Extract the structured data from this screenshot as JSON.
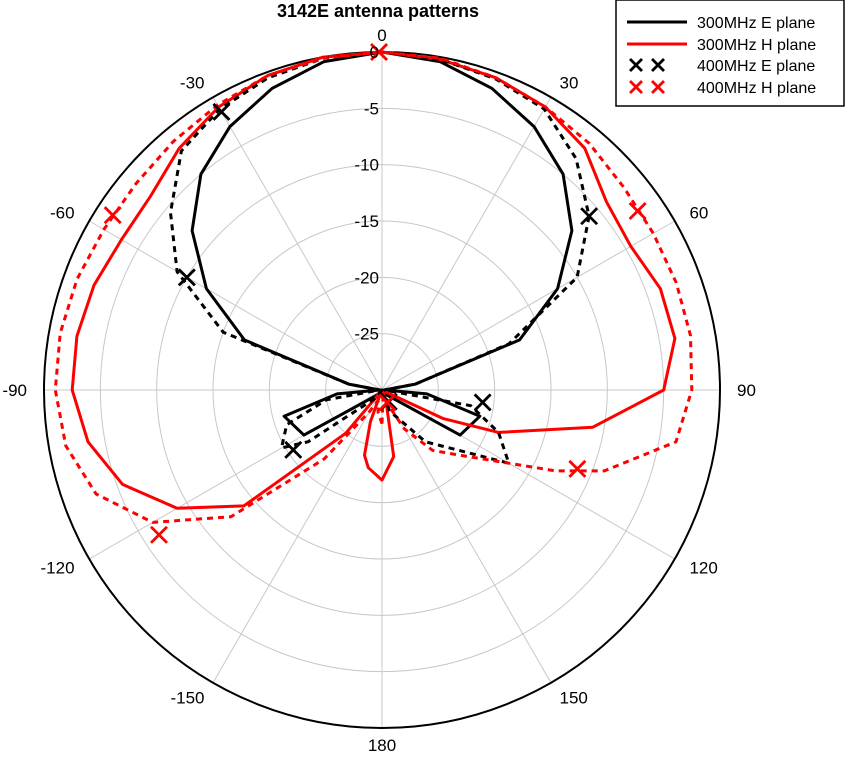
{
  "chart_data": {
    "type": "line",
    "subtype": "polar",
    "title": "3142E antenna patterns",
    "theta_direction": "clockwise",
    "theta_zero": "top",
    "radial_range": [
      -30,
      0
    ],
    "radial_ticks": [
      -25,
      -20,
      -15,
      -10,
      -5,
      0
    ],
    "radial_tick_labels": [
      "-25",
      "-20",
      "-15",
      "-10",
      "-5",
      "0"
    ],
    "angle_tick_values": [
      0,
      30,
      60,
      90,
      120,
      150,
      180,
      -150,
      -120,
      -90,
      -60,
      -30
    ],
    "angle_tick_labels": [
      "0",
      "30",
      "60",
      "90",
      "120",
      "150",
      "180",
      "-150",
      "-120",
      "-90",
      "-60",
      "-30"
    ],
    "grid": true,
    "legend_position": "top-right",
    "colors": {
      "black": "#000000",
      "red": "#ff0000",
      "grid": "#c8c8c8"
    },
    "series": [
      {
        "name": "300MHz E plane",
        "color": "#000000",
        "style": "solid",
        "marker": "none",
        "theta": [
          -180,
          -160,
          -140,
          -120,
          -105,
          -95,
          -90,
          -80,
          -70,
          -60,
          -50,
          -40,
          -30,
          -20,
          -10,
          0,
          10,
          20,
          30,
          40,
          50,
          60,
          70,
          80,
          90,
          95,
          105,
          120,
          140,
          160,
          180
        ],
        "r": [
          -30,
          -30,
          -29.5,
          -22,
          -21,
          -26,
          -29.8,
          -27,
          -17,
          -12,
          -8,
          -5,
          -3,
          -1.5,
          -0.4,
          0,
          -0.4,
          -1.5,
          -3,
          -5,
          -8,
          -12,
          -17,
          -27,
          -29.8,
          -26,
          -21,
          -22,
          -29.5,
          -30,
          -30
        ]
      },
      {
        "name": "300MHz H plane",
        "color": "#ff0000",
        "style": "solid",
        "marker": "none",
        "theta": [
          -180,
          -170,
          -165,
          -160,
          -150,
          -140,
          -130,
          -120,
          -110,
          -100,
          -90,
          -80,
          -70,
          -60,
          -50,
          -40,
          -30,
          -20,
          -10,
          0,
          10,
          20,
          30,
          40,
          50,
          60,
          70,
          80,
          90,
          100,
          110,
          115,
          120,
          130,
          140,
          150,
          160,
          170,
          180
        ],
        "r": [
          -22,
          -23,
          -24,
          -27,
          -29.9,
          -25,
          -14,
          -9,
          -5.5,
          -3.5,
          -2.5,
          -2.5,
          -2.8,
          -3.3,
          -3.2,
          -2,
          -1,
          -0.3,
          0,
          0,
          -0.2,
          -0.5,
          -1,
          -2,
          -4,
          -4.5,
          -3.7,
          -3.6,
          -5,
          -11,
          -19,
          -24,
          -29.9,
          -29.9,
          -29.9,
          -29.9,
          -29,
          -24,
          -22
        ]
      },
      {
        "name": "400MHz E plane",
        "color": "#000000",
        "style": "dashed",
        "marker": "x",
        "theta": [
          -180,
          -160,
          -140,
          -125,
          -120,
          -110,
          -100,
          -90,
          -80,
          -70,
          -60,
          -50,
          -40,
          -30,
          -20,
          -10,
          0,
          10,
          20,
          30,
          40,
          50,
          60,
          70,
          80,
          90,
          100,
          110,
          120,
          140,
          160,
          180
        ],
        "r": [
          -30,
          -30,
          -29,
          -22,
          -19.7,
          -21,
          -25,
          -29.8,
          -27,
          -15,
          -9,
          -5.5,
          -2.3,
          -1.2,
          -0.5,
          -0.1,
          0,
          -0.2,
          -0.6,
          -1.2,
          -3.2,
          -6,
          -10,
          -18,
          -27,
          -29.8,
          -22,
          -19,
          -17,
          -24,
          -28,
          -30
        ],
        "marker_theta": [
          -124,
          -60,
          -30,
          50,
          97,
          150
        ],
        "marker_r": [
          -20.5,
          -10,
          -1.5,
          -6,
          -21,
          -28.8
        ]
      },
      {
        "name": "400MHz H plane",
        "color": "#ff0000",
        "style": "dashed",
        "marker": "x",
        "theta": [
          -180,
          -170,
          -160,
          -150,
          -140,
          -130,
          -120,
          -110,
          -100,
          -90,
          -80,
          -70,
          -60,
          -50,
          -40,
          -30,
          -20,
          -10,
          0,
          10,
          20,
          30,
          40,
          50,
          60,
          70,
          80,
          90,
          100,
          110,
          115,
          120,
          130,
          140,
          150,
          160,
          170,
          180
        ],
        "r": [
          -27,
          -28,
          -29,
          -27.8,
          -22,
          -12.5,
          -6.5,
          -3,
          -1.5,
          -1,
          -1,
          -1.2,
          -1.5,
          -1.5,
          -1.2,
          -0.8,
          -0.3,
          -0.1,
          0,
          -0.1,
          -0.5,
          -1,
          -1.4,
          -2,
          -2.2,
          -2.2,
          -2.2,
          -2.5,
          -3.5,
          -9,
          -13,
          -17,
          -21,
          -23,
          -26,
          -28.8,
          -29.5,
          -27
        ],
        "marker_theta": [
          -123,
          -57,
          -0.5,
          55,
          112,
          157
        ],
        "marker_r": [
          -6.4,
          -1.5,
          0,
          -2.3,
          -11.3,
          -28.8
        ]
      }
    ]
  }
}
